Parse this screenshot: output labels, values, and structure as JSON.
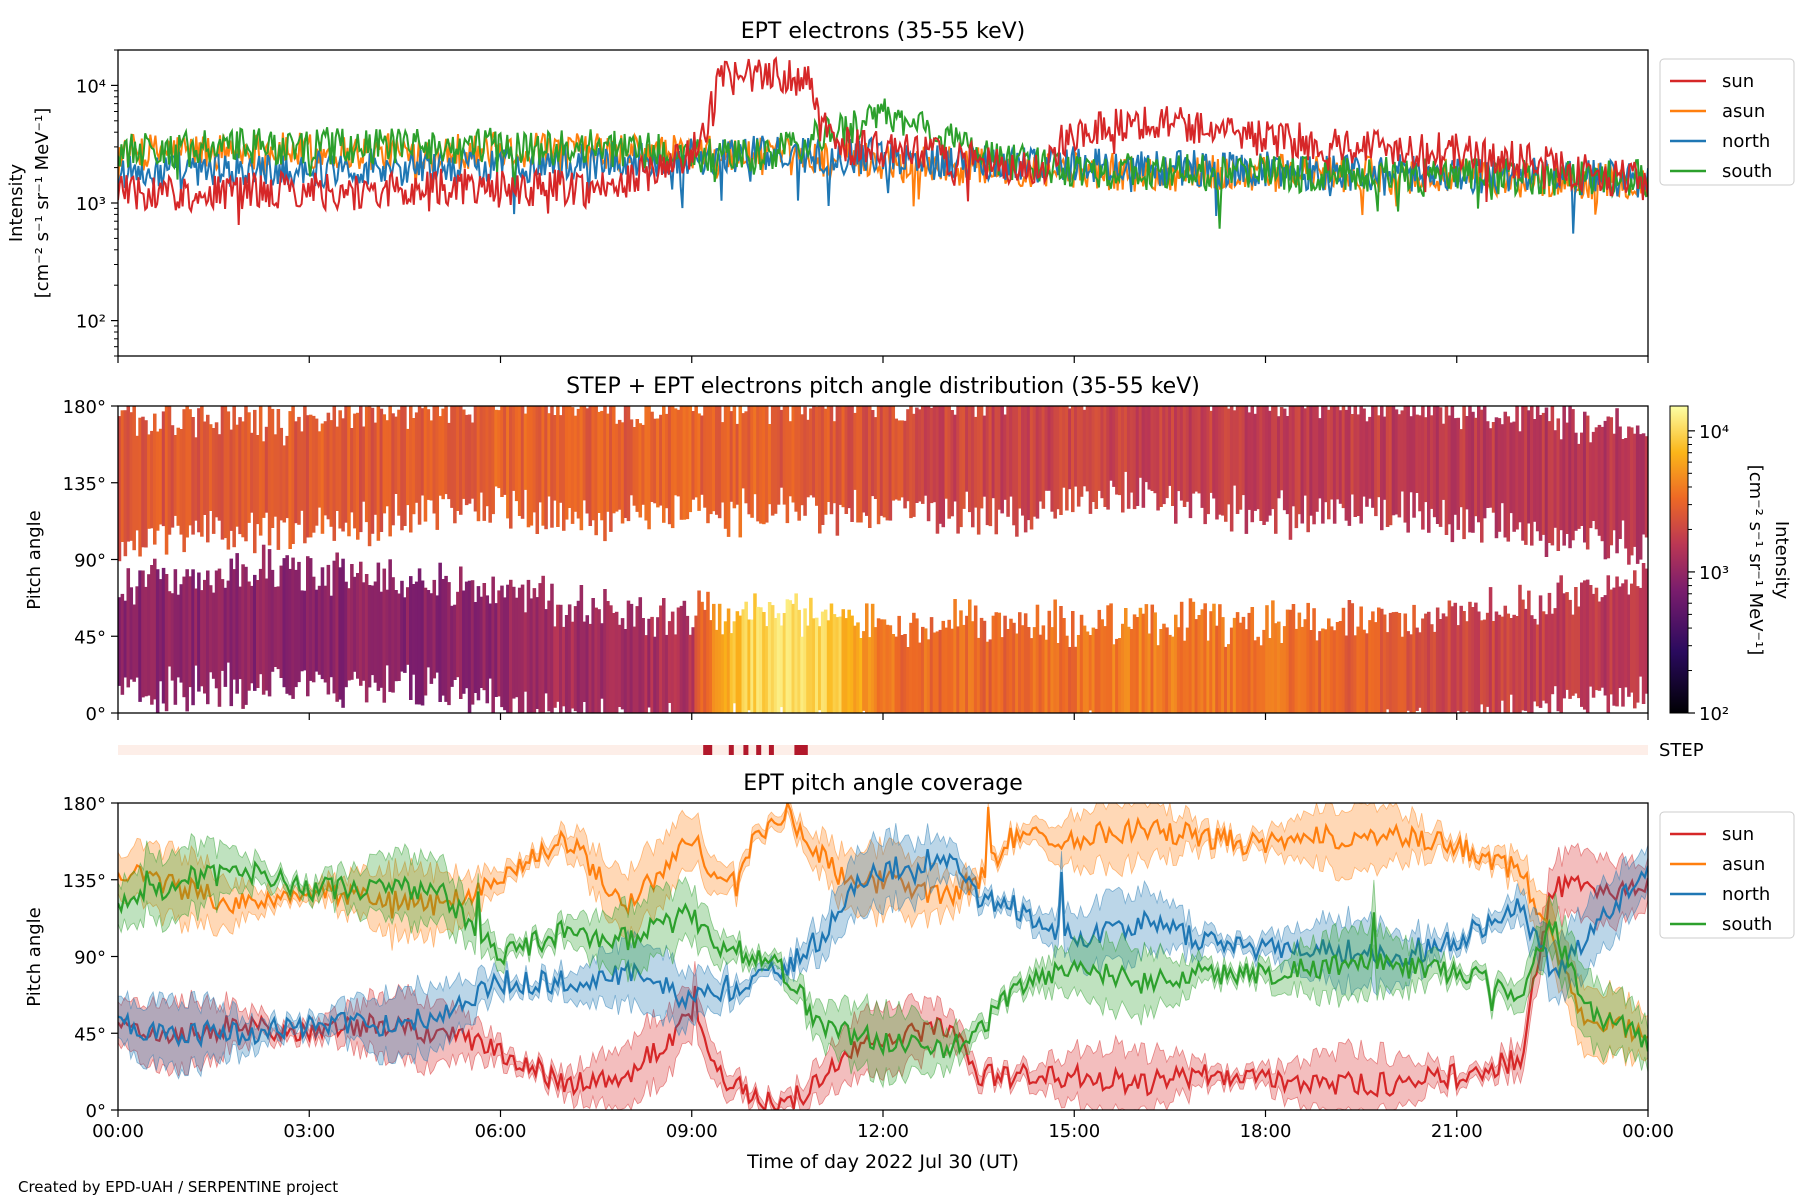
{
  "credit": "Created by EPD-UAH / SERPENTINE project",
  "chart_data": [
    {
      "type": "line",
      "title": "EPT electrons (35-55 keV)",
      "ylabel_lines": [
        "Intensity",
        "[cm⁻² s⁻¹ sr⁻¹ MeV⁻¹]"
      ],
      "yscale": "log",
      "ylim": [
        50,
        20000
      ],
      "xlim_hours": [
        0,
        24
      ],
      "yticks": [
        {
          "value": 100,
          "label": "10²"
        },
        {
          "value": 1000,
          "label": "10³"
        },
        {
          "value": 10000,
          "label": "10⁴"
        }
      ],
      "legend_position": "outside-right",
      "series": [
        {
          "name": "sun",
          "color": "#d62728",
          "x": [
            0,
            1,
            2,
            3,
            4,
            5,
            6,
            7,
            7.4,
            8,
            9,
            9.2,
            9.5,
            10,
            10.5,
            10.8,
            11,
            11.5,
            12,
            13,
            14,
            14.5,
            15,
            16,
            17,
            18,
            19,
            20,
            21,
            22,
            23,
            24
          ],
          "y": [
            1300,
            1200,
            1250,
            1300,
            1200,
            1400,
            1300,
            1400,
            1300,
            1500,
            2500,
            4000,
            12000,
            11500,
            12500,
            11000,
            4500,
            3000,
            2800,
            2500,
            1900,
            2000,
            4000,
            5000,
            4500,
            3500,
            3200,
            3000,
            2700,
            2300,
            1800,
            1500
          ]
        },
        {
          "name": "asun",
          "color": "#ff7f0e",
          "x": [
            0,
            2,
            4,
            6,
            8,
            9,
            10,
            12,
            14,
            16,
            18,
            20,
            22,
            24
          ],
          "y": [
            2700,
            2800,
            2700,
            2800,
            2700,
            2600,
            2500,
            2300,
            2000,
            1800,
            1800,
            1700,
            1600,
            1500
          ]
        },
        {
          "name": "north",
          "color": "#1f77b4",
          "x": [
            0,
            2,
            4,
            6,
            8,
            9,
            10,
            12,
            14,
            16,
            18,
            20,
            22,
            24
          ],
          "y": [
            1800,
            1900,
            2000,
            2100,
            2300,
            2500,
            2600,
            2500,
            2200,
            2000,
            1900,
            1800,
            1700,
            1600
          ]
        },
        {
          "name": "south",
          "color": "#2ca02c",
          "x": [
            0,
            2,
            4,
            6,
            8,
            9,
            10,
            11,
            12,
            13,
            14,
            16,
            18,
            20,
            22,
            24
          ],
          "y": [
            2800,
            3000,
            3100,
            3000,
            2900,
            2500,
            2400,
            3500,
            5500,
            3500,
            2200,
            1800,
            1800,
            1700,
            1700,
            1600
          ]
        }
      ]
    },
    {
      "type": "heatmap",
      "title": "STEP + EPT electrons pitch angle distribution (35-55 keV)",
      "ylabel": "Pitch angle",
      "ylim": [
        0,
        180
      ],
      "xlim_hours": [
        0,
        24
      ],
      "yticks": [
        {
          "value": 0,
          "label": "0°"
        },
        {
          "value": 45,
          "label": "45°"
        },
        {
          "value": 90,
          "label": "90°"
        },
        {
          "value": 135,
          "label": "135°"
        },
        {
          "value": 180,
          "label": "180°"
        }
      ],
      "colorbar": {
        "label_lines": [
          "Intensity",
          "[cm⁻² s⁻¹ sr⁻¹ MeV⁻¹]"
        ],
        "scale": "log",
        "range": [
          100,
          15000
        ],
        "ticks": [
          {
            "value": 100,
            "label": "10²"
          },
          {
            "value": 1000,
            "label": "10³"
          },
          {
            "value": 10000,
            "label": "10⁴"
          }
        ]
      },
      "bands": [
        {
          "name": "high pitch angles",
          "center": [
            135,
            140,
            140,
            138,
            145,
            150,
            155,
            150,
            145,
            150,
            150,
            150,
            150,
            150,
            150,
            155,
            160,
            155,
            150,
            150,
            150,
            145,
            140,
            135,
            130
          ],
          "intensity": [
            2500,
            2600,
            2700,
            2700,
            2700,
            2800,
            2900,
            2900,
            2800,
            3000,
            2900,
            2600,
            2400,
            2000,
            1900,
            1900,
            1800,
            1800,
            1700,
            1700,
            1700,
            1600,
            1600,
            1500,
            1500
          ]
        },
        {
          "name": "low pitch angles",
          "center": [
            45,
            45,
            50,
            50,
            48,
            45,
            40,
            30,
            25,
            25,
            25,
            25,
            20,
            20,
            20,
            20,
            20,
            20,
            20,
            20,
            20,
            25,
            30,
            40,
            45
          ],
          "intensity": [
            900,
            900,
            900,
            900,
            900,
            900,
            1000,
            1200,
            1200,
            1400,
            10000,
            10000,
            3500,
            3300,
            3200,
            3500,
            4000,
            3800,
            3500,
            3200,
            2500,
            2000,
            1800,
            1600,
            1500
          ]
        }
      ],
      "step_label": "STEP",
      "step_marks_hours": [
        9.25,
        9.62,
        9.85,
        10.05,
        10.25,
        10.65,
        10.75
      ]
    },
    {
      "type": "line",
      "title": "EPT pitch angle coverage",
      "ylabel": "Pitch angle",
      "xlabel": "Time of day 2022 Jul 30 (UT)",
      "ylim": [
        0,
        180
      ],
      "xlim_hours": [
        0,
        24
      ],
      "yticks": [
        {
          "value": 0,
          "label": "0°"
        },
        {
          "value": 45,
          "label": "45°"
        },
        {
          "value": 90,
          "label": "90°"
        },
        {
          "value": 135,
          "label": "135°"
        },
        {
          "value": 180,
          "label": "180°"
        }
      ],
      "xticks": [
        {
          "value": 0,
          "label": "00:00"
        },
        {
          "value": 3,
          "label": "03:00"
        },
        {
          "value": 6,
          "label": "06:00"
        },
        {
          "value": 9,
          "label": "09:00"
        },
        {
          "value": 12,
          "label": "12:00"
        },
        {
          "value": 15,
          "label": "15:00"
        },
        {
          "value": 18,
          "label": "18:00"
        },
        {
          "value": 21,
          "label": "21:00"
        },
        {
          "value": 24,
          "label": "00:00"
        }
      ],
      "legend_position": "outside-right",
      "series": [
        {
          "name": "sun",
          "color": "#d62728",
          "x": [
            0,
            1,
            2,
            3,
            4,
            5,
            6,
            7,
            8,
            9,
            9.5,
            10,
            10.5,
            11,
            11.5,
            12,
            13,
            13.5,
            14,
            15,
            16,
            17,
            18,
            19,
            20,
            21,
            22,
            22.5,
            23,
            24
          ],
          "y": [
            50,
            45,
            50,
            45,
            50,
            45,
            35,
            15,
            20,
            55,
            20,
            5,
            5,
            15,
            35,
            40,
            50,
            20,
            20,
            20,
            15,
            20,
            20,
            15,
            15,
            20,
            30,
            130,
            130,
            130
          ]
        },
        {
          "name": "asun",
          "color": "#ff7f0e",
          "x": [
            0,
            1,
            2,
            3,
            4,
            5,
            6,
            7,
            8,
            9,
            9.5,
            10,
            10.5,
            11,
            11.5,
            12,
            13,
            13.5,
            14,
            15,
            16,
            17,
            18,
            19,
            20,
            21,
            22,
            22.5,
            23,
            24
          ],
          "y": [
            140,
            130,
            120,
            130,
            125,
            120,
            135,
            160,
            120,
            160,
            130,
            160,
            175,
            150,
            130,
            135,
            125,
            135,
            160,
            160,
            165,
            160,
            155,
            160,
            160,
            155,
            140,
            100,
            55,
            45
          ]
        },
        {
          "name": "north",
          "color": "#1f77b4",
          "x": [
            0,
            1,
            2,
            3,
            4,
            5,
            6,
            7,
            8,
            9,
            9.5,
            10,
            10.5,
            11,
            11.5,
            12,
            13,
            13.5,
            14,
            15,
            16,
            17,
            18,
            19,
            20,
            21,
            22,
            22.5,
            23,
            24
          ],
          "y": [
            50,
            45,
            45,
            50,
            50,
            55,
            75,
            75,
            80,
            65,
            70,
            75,
            85,
            100,
            130,
            140,
            150,
            125,
            120,
            100,
            110,
            100,
            95,
            95,
            90,
            100,
            120,
            80,
            100,
            140
          ]
        },
        {
          "name": "south",
          "color": "#2ca02c",
          "x": [
            0,
            1,
            2,
            3,
            4,
            5,
            6,
            7,
            8,
            9,
            9.5,
            10,
            10.5,
            11,
            11.5,
            12,
            13,
            13.5,
            14,
            15,
            16,
            17,
            18,
            19,
            20,
            21,
            22,
            22.5,
            23,
            24
          ],
          "y": [
            120,
            135,
            140,
            130,
            130,
            130,
            90,
            105,
            100,
            115,
            95,
            90,
            80,
            50,
            45,
            40,
            35,
            45,
            70,
            85,
            75,
            80,
            80,
            85,
            85,
            80,
            70,
            110,
            60,
            40
          ]
        }
      ]
    }
  ]
}
